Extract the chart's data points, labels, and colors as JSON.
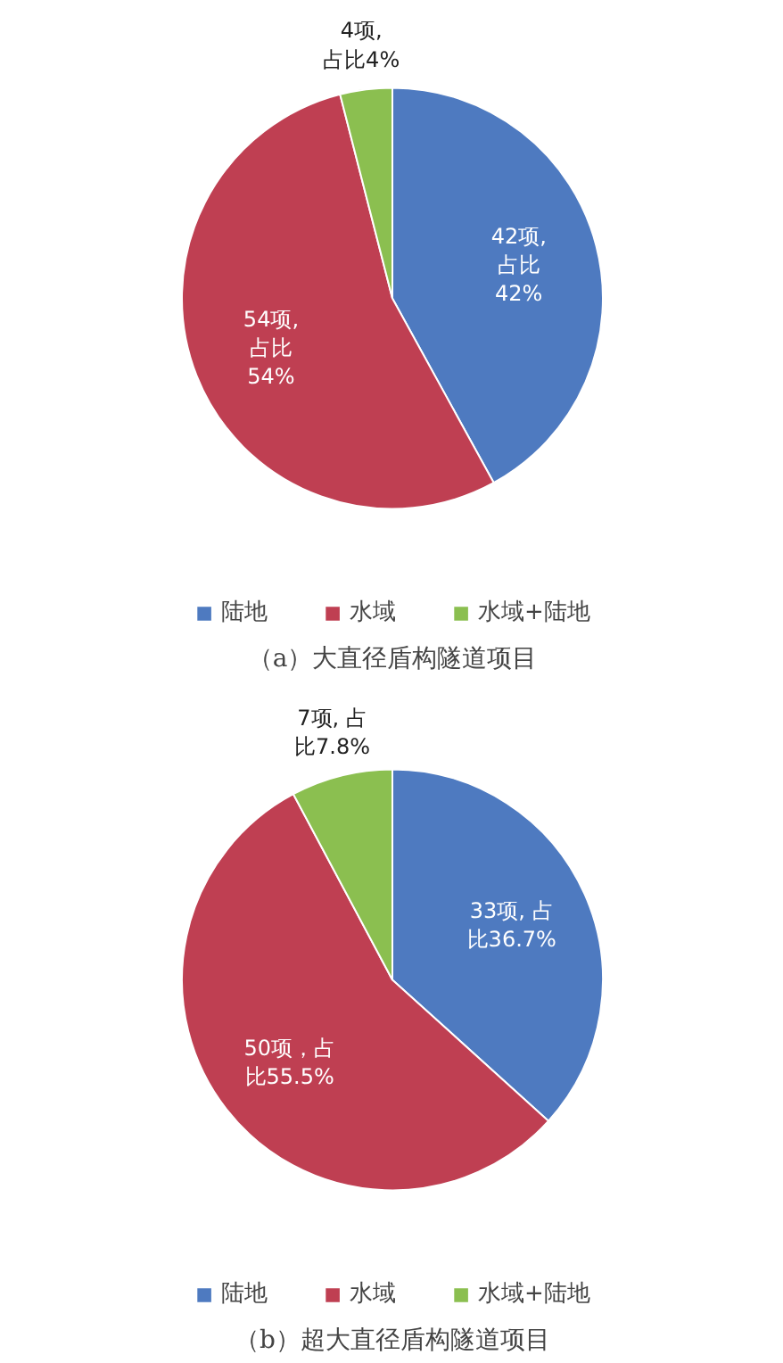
{
  "chart_data": [
    {
      "type": "pie",
      "title": "（a）大直径盾构隧道项目",
      "categories": [
        "陆地",
        "水域",
        "水域+陆地"
      ],
      "values": [
        42,
        54,
        4
      ],
      "colors": [
        "#4e7ac0",
        "#bf3f52",
        "#8bbf50"
      ],
      "value_labels": [
        "42项,\n占比\n42%",
        "54项,\n占比\n54%",
        "4项,\n占比4%"
      ],
      "legend": "bottom"
    },
    {
      "type": "pie",
      "title": "（b）超大直径盾构隧道项目",
      "categories": [
        "陆地",
        "水域",
        "水域+陆地"
      ],
      "values": [
        36.7,
        55.5,
        7.8
      ],
      "colors": [
        "#4e7ac0",
        "#bf3f52",
        "#8bbf50"
      ],
      "value_labels": [
        "33项, 占比36.7%",
        "50项，占比55.5%",
        "7项, 占比7.8%"
      ],
      "legend": "bottom"
    }
  ]
}
